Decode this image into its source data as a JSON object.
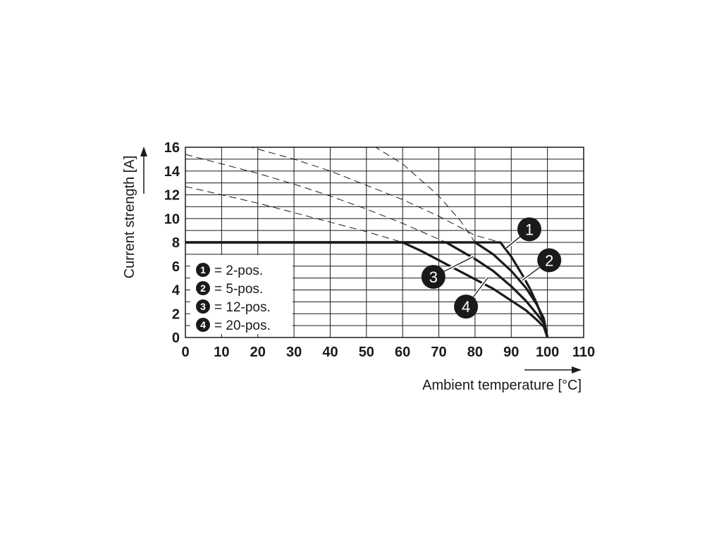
{
  "chart_data": {
    "type": "line",
    "xlabel": "Ambient temperature [°C]",
    "ylabel": "Current strength [A]",
    "xlim": [
      0,
      110
    ],
    "ylim": [
      0,
      16
    ],
    "x_ticks": [
      "0",
      "10",
      "20",
      "30",
      "40",
      "50",
      "60",
      "70",
      "80",
      "90",
      "100",
      "110"
    ],
    "y_ticks": [
      "0",
      "2",
      "4",
      "6",
      "8",
      "10",
      "12",
      "14",
      "16"
    ],
    "grid": true,
    "legend_position": "bottom-left",
    "series": [
      {
        "id": "1",
        "name": "2-pos.",
        "label": "1",
        "x": [
          0,
          87,
          90,
          93,
          95,
          97,
          98,
          99,
          100
        ],
        "y": [
          8,
          8,
          6.8,
          5.3,
          4.2,
          2.9,
          2.1,
          1.3,
          0
        ],
        "derating_x": [
          17,
          30,
          40,
          50,
          60,
          70,
          80,
          87
        ],
        "derating_y": [
          16.1,
          15.0,
          14.0,
          12.8,
          11.6,
          10.2,
          8.6,
          8
        ]
      },
      {
        "id": "2",
        "name": "5-pos.",
        "label": "2",
        "x": [
          0,
          80,
          85,
          90,
          94,
          97,
          99,
          100
        ],
        "y": [
          8,
          8,
          7.0,
          5.6,
          4.2,
          2.8,
          1.6,
          0
        ],
        "derating_x": [
          52,
          60,
          70,
          76,
          80
        ],
        "derating_y": [
          16.1,
          14.6,
          11.9,
          9.8,
          8
        ]
      },
      {
        "id": "3",
        "name": "12-pos.",
        "label": "3",
        "x": [
          0,
          72,
          80,
          85,
          90,
          94,
          97,
          99,
          100
        ],
        "y": [
          8,
          8,
          6.6,
          5.6,
          4.3,
          3.1,
          2.0,
          1.2,
          0
        ],
        "derating_x": [
          0,
          10,
          20,
          30,
          40,
          50,
          60,
          72
        ],
        "derating_y": [
          15.4,
          14.6,
          13.8,
          12.9,
          11.9,
          10.8,
          9.6,
          8
        ]
      },
      {
        "id": "4",
        "name": "20-pos.",
        "label": "4",
        "x": [
          0,
          60,
          65,
          70,
          75,
          80,
          85,
          90,
          94,
          97,
          99,
          100
        ],
        "y": [
          8,
          8,
          7.3,
          6.5,
          5.7,
          4.9,
          4.1,
          3.1,
          2.3,
          1.5,
          0.9,
          0
        ],
        "derating_x": [
          0,
          10,
          20,
          30,
          40,
          50,
          60
        ],
        "derating_y": [
          12.7,
          12.0,
          11.3,
          10.5,
          9.7,
          8.9,
          8
        ]
      }
    ],
    "legend": [
      {
        "num": "1",
        "text": "= 2-pos."
      },
      {
        "num": "2",
        "text": "= 5-pos."
      },
      {
        "num": "3",
        "text": "= 12-pos."
      },
      {
        "num": "4",
        "text": "= 20-pos."
      }
    ],
    "annotations": [
      {
        "num": "1",
        "target_series": "1",
        "at_x": 88.5,
        "at_y": 7.5,
        "badge_x": 95,
        "badge_y": 9.1
      },
      {
        "num": "2",
        "target_series": "2",
        "at_x": 93,
        "at_y": 4.8,
        "badge_x": 100.5,
        "badge_y": 6.5
      },
      {
        "num": "3",
        "target_series": "3",
        "at_x": 79.5,
        "at_y": 6.8,
        "badge_x": 68.5,
        "badge_y": 5.1
      },
      {
        "num": "4",
        "target_series": "4",
        "at_x": 83.5,
        "at_y": 5.0,
        "badge_x": 77.5,
        "badge_y": 2.6
      }
    ]
  }
}
